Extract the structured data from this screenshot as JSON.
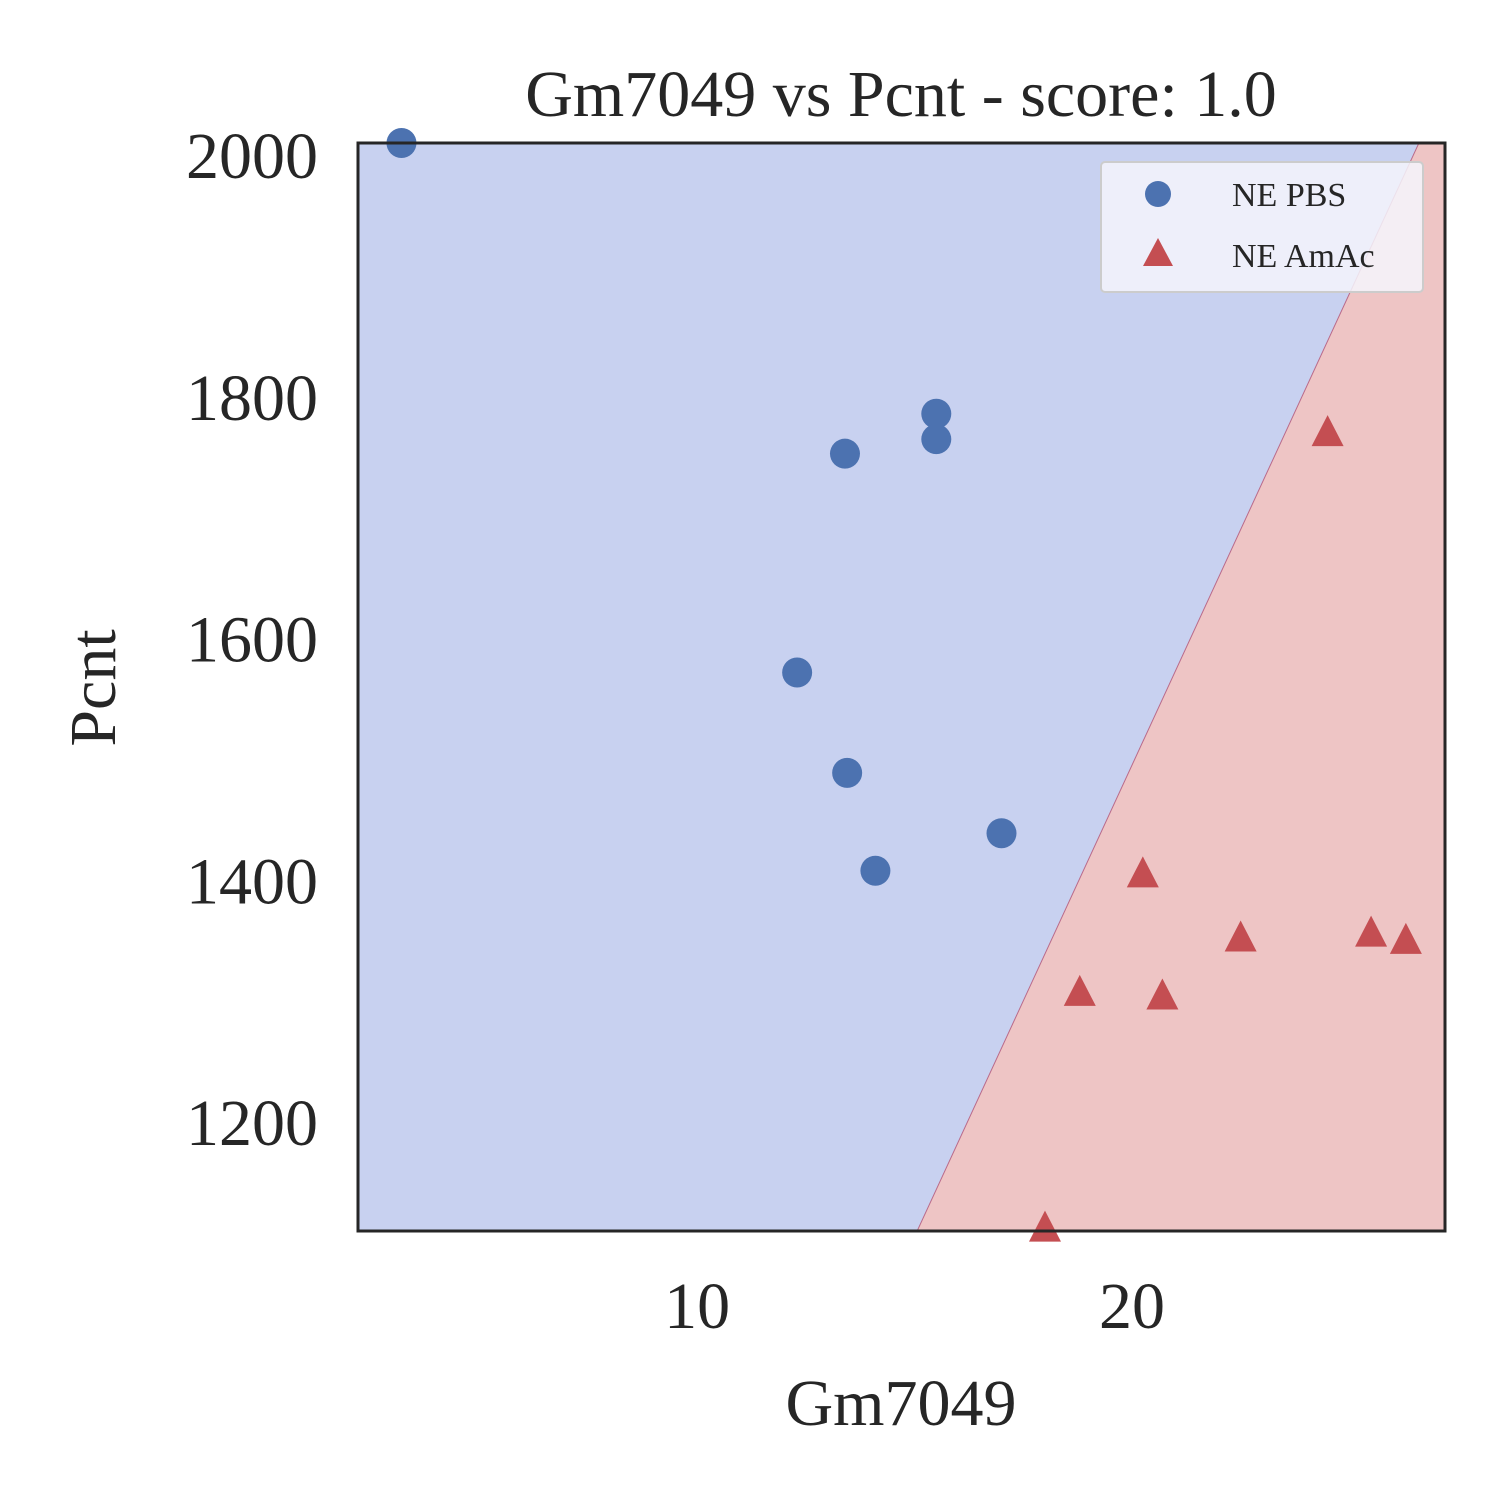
{
  "chart_data": {
    "type": "scatter",
    "title": "Gm7049 vs Pcnt - score: 1.0",
    "xlabel": "Gm7049",
    "ylabel": "Pcnt",
    "xlim": [
      2.2,
      27.2
    ],
    "ylim": [
      1110,
      2010
    ],
    "xticks": [
      10,
      20
    ],
    "yticks": [
      1200,
      1400,
      1600,
      1800,
      2000
    ],
    "grid": false,
    "legend_position": "top-right",
    "decision_boundary": {
      "points": [
        [
          15.06,
          1110
        ],
        [
          26.6,
          2010
        ]
      ],
      "left_region_color": "#c8d1f0",
      "right_region_color": "#eec5c5",
      "boundary_line_color": "#b96a8a"
    },
    "series": [
      {
        "name": "NE PBS",
        "marker": "circle",
        "color": "#4c72b0",
        "points": [
          [
            3.2,
            2010
          ],
          [
            12.3,
            1572
          ],
          [
            13.4,
            1753
          ],
          [
            13.45,
            1489
          ],
          [
            14.1,
            1408
          ],
          [
            15.5,
            1786
          ],
          [
            15.5,
            1765
          ],
          [
            17.0,
            1439
          ]
        ]
      },
      {
        "name": "NE AmAc",
        "marker": "triangle",
        "color": "#c44e52",
        "points": [
          [
            18.0,
            1112
          ],
          [
            18.8,
            1307
          ],
          [
            20.25,
            1405
          ],
          [
            20.7,
            1304
          ],
          [
            22.5,
            1352
          ],
          [
            24.5,
            1770
          ],
          [
            25.5,
            1356
          ],
          [
            26.3,
            1350
          ]
        ]
      }
    ]
  }
}
